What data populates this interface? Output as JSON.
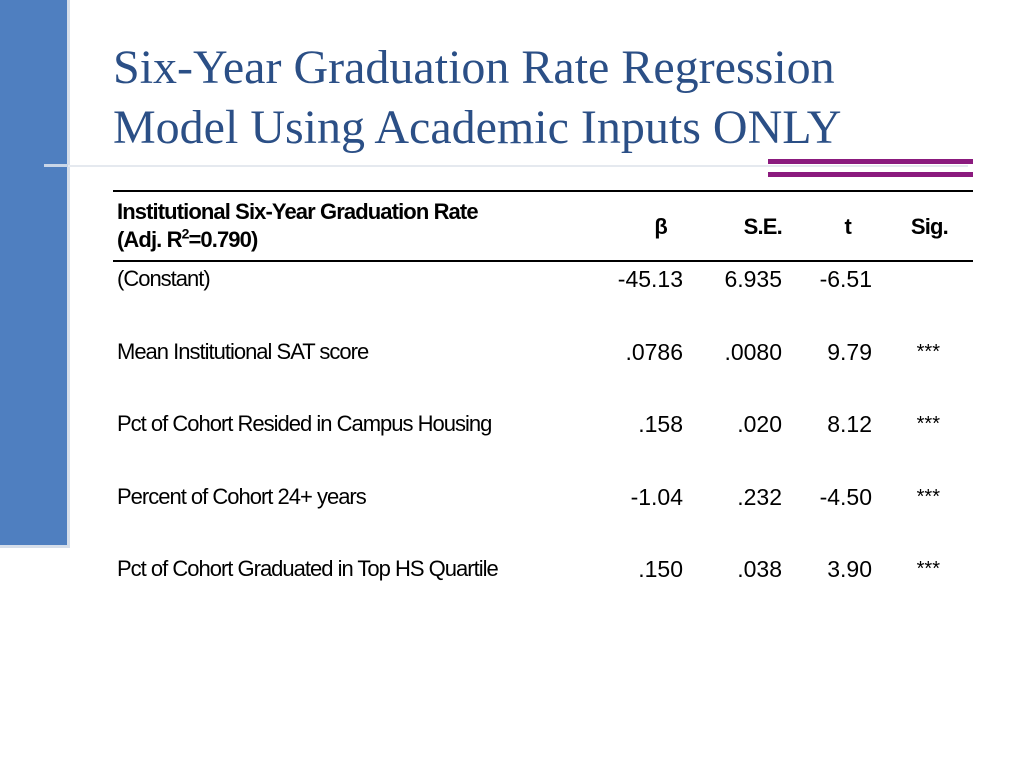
{
  "slide": {
    "title_line1": "Six-Year Graduation Rate Regression",
    "title_line2": "Model Using Academic Inputs ONLY",
    "accent_color": "#8b1a7e",
    "sidebar_color": "#4f7fc0",
    "title_color": "#2b4f86"
  },
  "table": {
    "header": {
      "label_line1": "Institutional Six-Year Graduation Rate",
      "label_line2_prefix": "(Adj. R",
      "label_line2_sup": "2",
      "label_line2_suffix": "=0.790)",
      "beta": "β",
      "se": "S.E.",
      "t": "t",
      "sig": "Sig."
    },
    "rows": [
      {
        "label": "(Constant)",
        "beta": "-45.13",
        "se": "6.935",
        "t": "-6.51",
        "sig": ""
      },
      {
        "label": "Mean Institutional SAT score",
        "beta": ".0786",
        "se": ".0080",
        "t": "9.79",
        "sig": "***"
      },
      {
        "label": "Pct of Cohort Resided in Campus Housing",
        "beta": ".158",
        "se": ".020",
        "t": "8.12",
        "sig": "***"
      },
      {
        "label": "Percent of Cohort 24+ years",
        "beta": "-1.04",
        "se": ".232",
        "t": "-4.50",
        "sig": "***"
      },
      {
        "label": "Pct of Cohort Graduated in Top HS Quartile",
        "beta": ".150",
        "se": ".038",
        "t": "3.90",
        "sig": "***"
      }
    ]
  }
}
